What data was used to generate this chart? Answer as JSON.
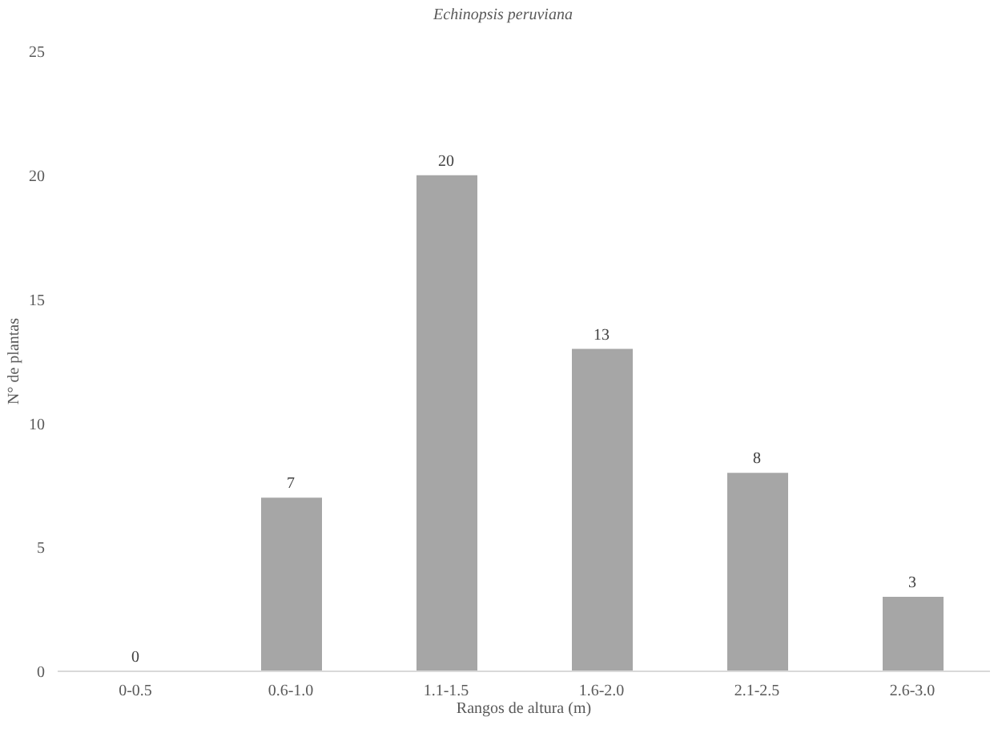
{
  "chart_data": {
    "type": "bar",
    "title": "Echinopsis peruviana",
    "xlabel": "Rangos de altura (m)",
    "ylabel": "N° de plantas",
    "categories": [
      "0-0.5",
      "0.6-1.0",
      "1.1-1.5",
      "1.6-2.0",
      "2.1-2.5",
      "2.6-3.0"
    ],
    "values": [
      0,
      7,
      20,
      13,
      8,
      3
    ],
    "color": "#a6a6a6",
    "ylim": [
      0,
      25
    ],
    "yticks": [
      0,
      5,
      10,
      15,
      20,
      25
    ],
    "grid": false,
    "data_labels": true
  }
}
